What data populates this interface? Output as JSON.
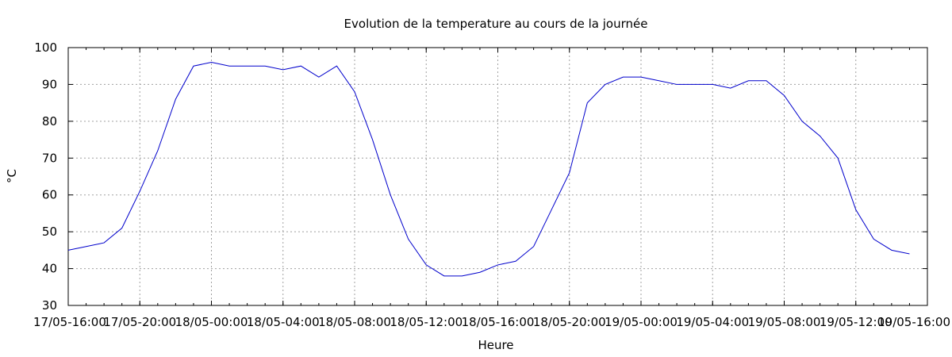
{
  "chart_data": {
    "type": "line",
    "title": "Evolution de la temperature au cours de la journée",
    "xlabel": "Heure",
    "ylabel": "°C",
    "ylim": [
      30,
      100
    ],
    "yticks": [
      30,
      40,
      50,
      60,
      70,
      80,
      90,
      100
    ],
    "xlim": [
      "17/05-16:00",
      "19/05-16:00"
    ],
    "xticks": [
      "17/05-16:00",
      "17/05-20:00",
      "18/05-00:00",
      "18/05-04:00",
      "18/05-08:00",
      "18/05-12:00",
      "18/05-16:00",
      "18/05-20:00",
      "19/05-00:00",
      "19/05-04:00",
      "19/05-08:00",
      "19/05-12:00",
      "19/05-16:00"
    ],
    "grid": true,
    "colors": {
      "line": "#0000cc",
      "grid": "#a0a0a0",
      "axis": "#000000"
    },
    "series": [
      {
        "x": [
          "17/05-16:00",
          "17/05-17:00",
          "17/05-18:00",
          "17/05-19:00",
          "17/05-20:00",
          "17/05-21:00",
          "17/05-22:00",
          "17/05-23:00",
          "18/05-00:00",
          "18/05-01:00",
          "18/05-02:00",
          "18/05-03:00",
          "18/05-04:00",
          "18/05-05:00",
          "18/05-06:00",
          "18/05-07:00",
          "18/05-08:00",
          "18/05-09:00",
          "18/05-10:00",
          "18/05-11:00",
          "18/05-12:00",
          "18/05-13:00",
          "18/05-14:00",
          "18/05-15:00",
          "18/05-16:00",
          "18/05-17:00",
          "18/05-18:00",
          "18/05-19:00",
          "18/05-20:00",
          "18/05-21:00",
          "18/05-22:00",
          "18/05-23:00",
          "19/05-00:00",
          "19/05-01:00",
          "19/05-02:00",
          "19/05-03:00",
          "19/05-04:00",
          "19/05-05:00",
          "19/05-06:00",
          "19/05-07:00",
          "19/05-08:00",
          "19/05-09:00",
          "19/05-10:00",
          "19/05-11:00",
          "19/05-12:00",
          "19/05-13:00",
          "19/05-14:00",
          "19/05-15:00"
        ],
        "values": [
          45,
          46,
          47,
          51,
          61,
          72,
          86,
          95,
          96,
          95,
          95,
          95,
          94,
          95,
          92,
          95,
          88,
          75,
          60,
          48,
          41,
          38,
          38,
          39,
          41,
          42,
          46,
          56,
          66,
          85,
          90,
          92,
          92,
          91,
          90,
          90,
          90,
          89,
          91,
          91,
          87,
          80,
          76,
          70,
          56,
          48,
          45,
          44
        ]
      }
    ]
  }
}
